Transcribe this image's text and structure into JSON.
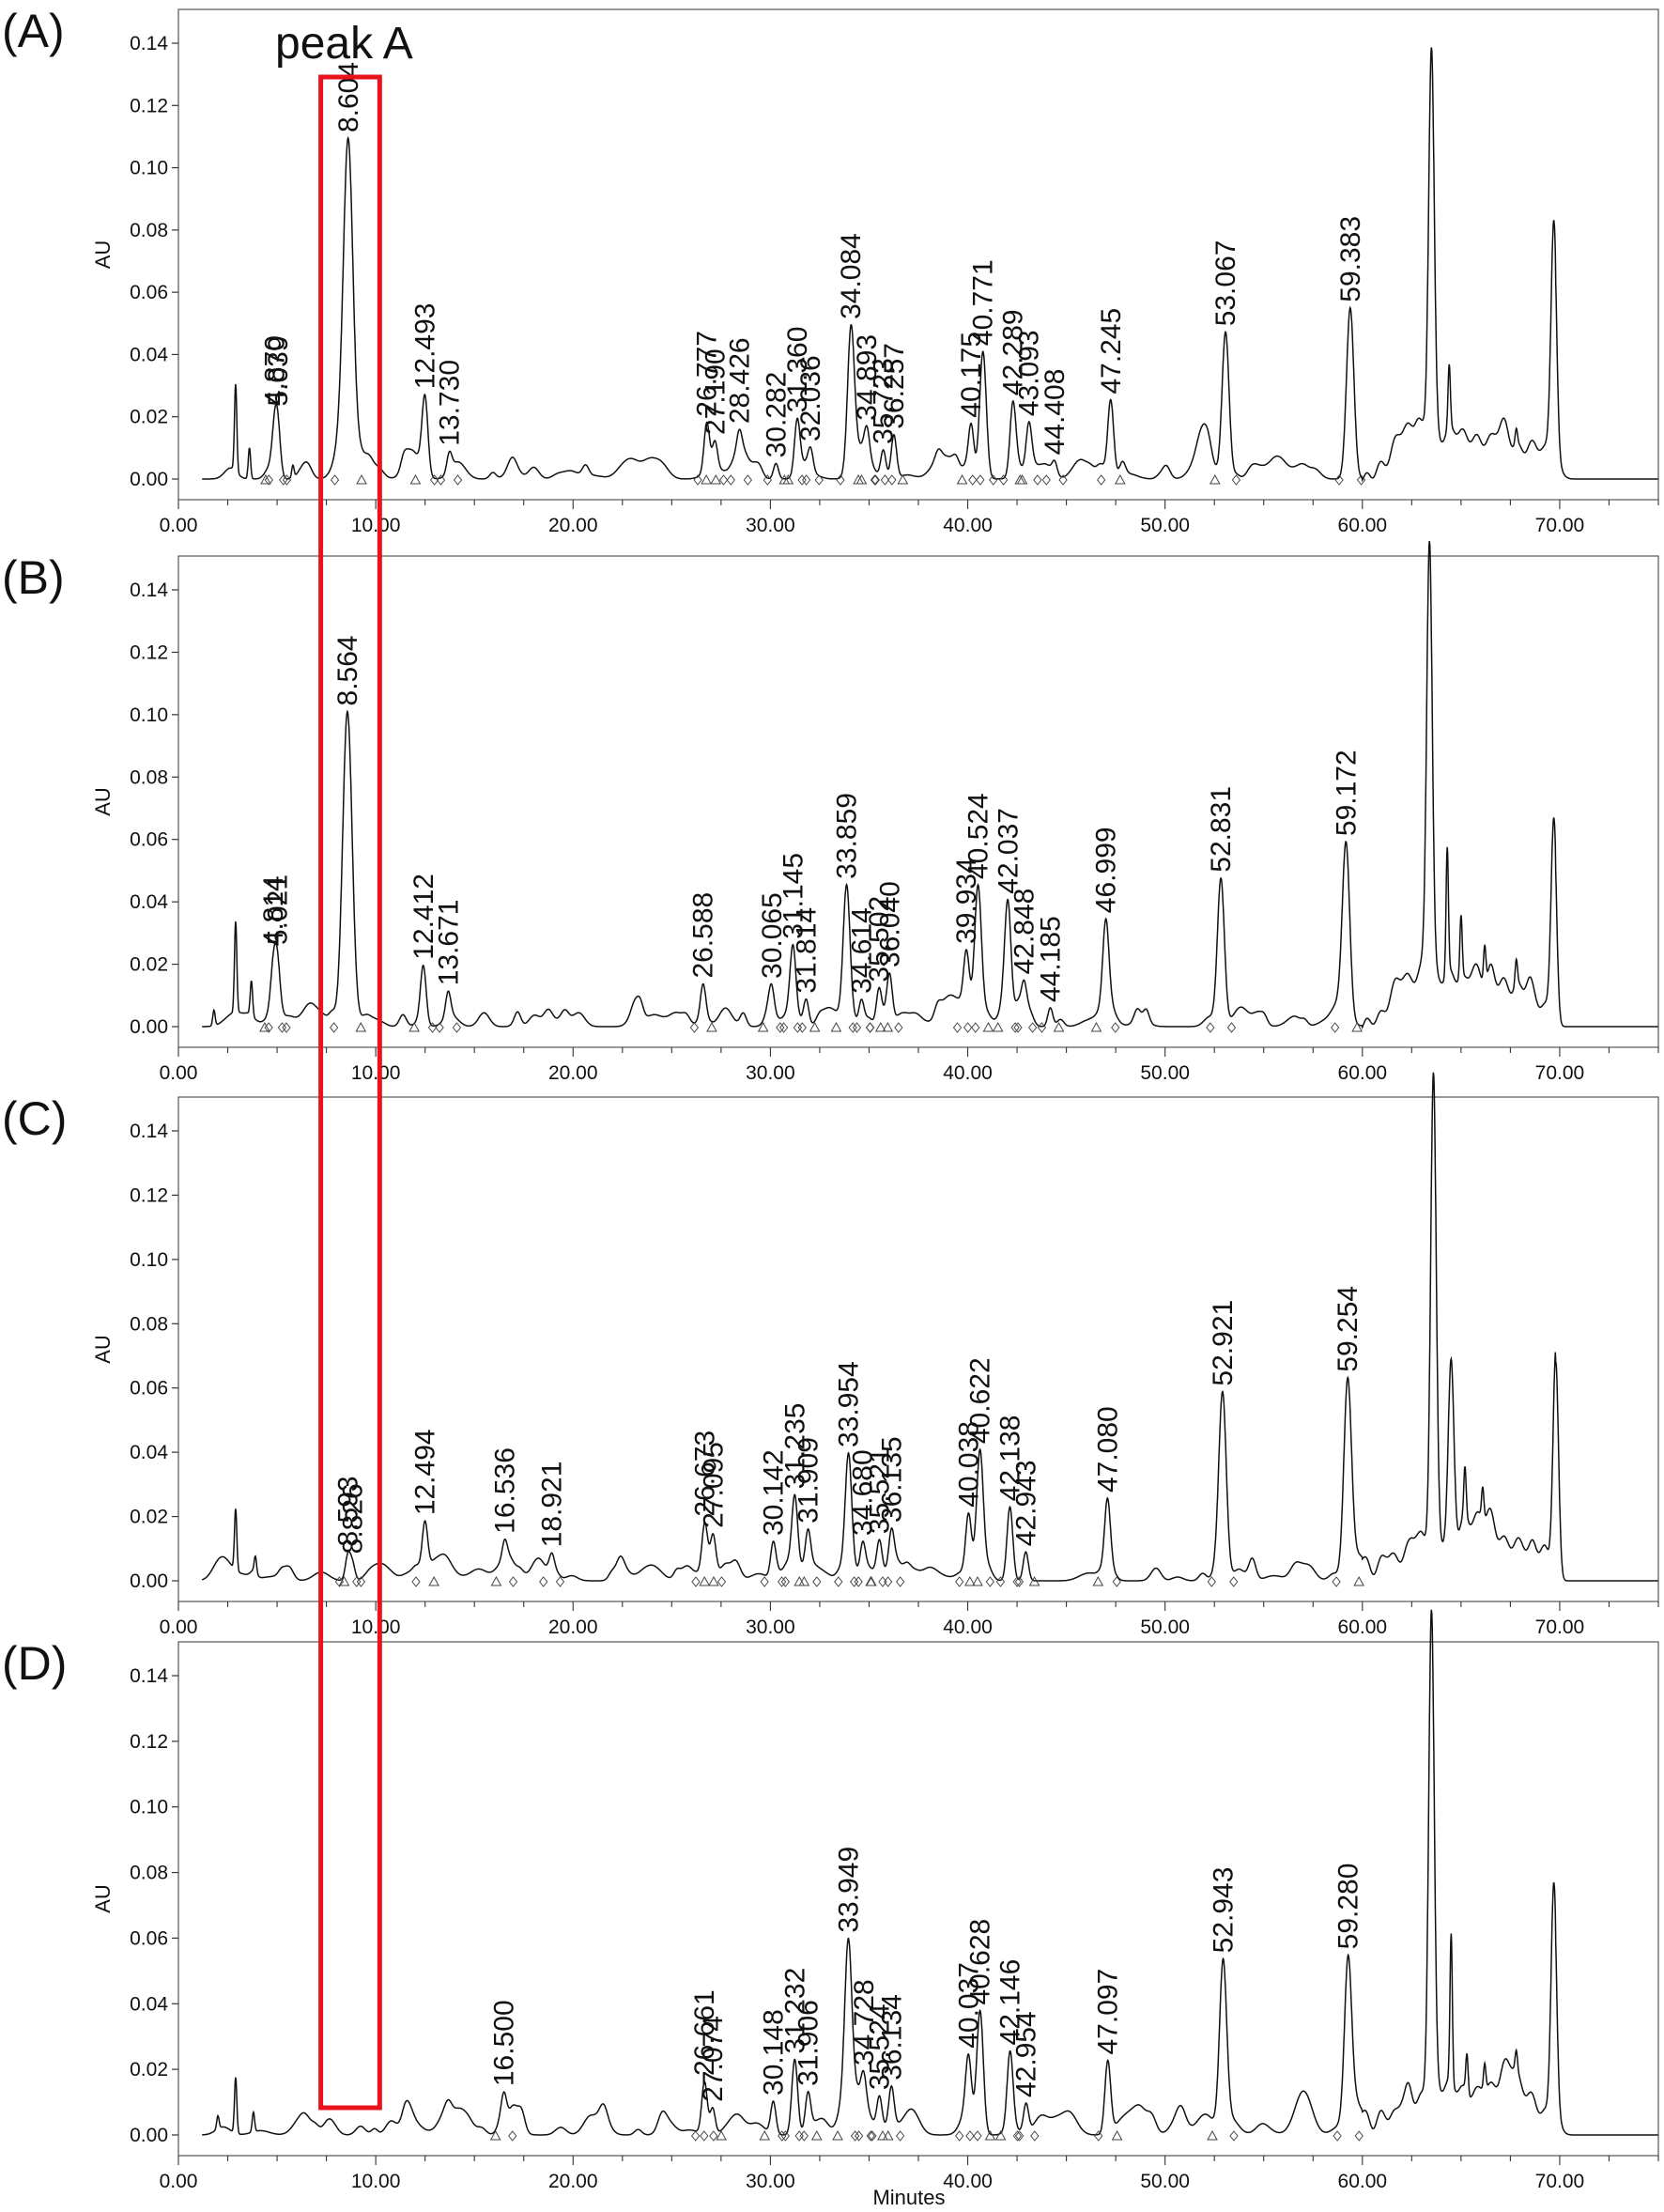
{
  "figure": {
    "x_axis_label": "Minutes",
    "y_axis_label": "AU",
    "highlight_label": "peak A",
    "highlight_range": [
      7.5,
      10.2
    ],
    "highlight_color": "#e8141c",
    "trace_color": "#111111"
  },
  "chart_data": [
    {
      "type": "line",
      "panel": "(A)",
      "xlim": [
        0,
        75
      ],
      "ylim": [
        -0.003,
        0.15
      ],
      "xticks": [
        "0.00",
        "10.00",
        "20.00",
        "30.00",
        "40.00",
        "50.00",
        "60.00",
        "70.00"
      ],
      "yticks": [
        "0.00",
        "0.02",
        "0.04",
        "0.06",
        "0.08",
        "0.10",
        "0.12",
        "0.14"
      ],
      "peaks": [
        {
          "label": "4.870",
          "x": 4.87,
          "y": 0.012
        },
        {
          "label": "5.039",
          "x": 5.039,
          "y": 0.015
        },
        {
          "label": "8.604",
          "x": 8.604,
          "y": 0.1
        },
        {
          "label": "12.493",
          "x": 12.493,
          "y": 0.025
        },
        {
          "label": "13.730",
          "x": 13.73,
          "y": 0.006
        },
        {
          "label": "26.777",
          "x": 26.777,
          "y": 0.016
        },
        {
          "label": "27.190",
          "x": 27.19,
          "y": 0.009
        },
        {
          "label": "28.426",
          "x": 28.426,
          "y": 0.006
        },
        {
          "label": "30.282",
          "x": 30.282,
          "y": 0.005
        },
        {
          "label": "31.360",
          "x": 31.36,
          "y": 0.018
        },
        {
          "label": "32.036",
          "x": 32.036,
          "y": 0.007
        },
        {
          "label": "34.084",
          "x": 34.084,
          "y": 0.046
        },
        {
          "label": "34.893",
          "x": 34.893,
          "y": 0.008
        },
        {
          "label": "35.723",
          "x": 35.723,
          "y": 0.009
        },
        {
          "label": "36.257",
          "x": 36.257,
          "y": 0.014
        },
        {
          "label": "40.175",
          "x": 40.175,
          "y": 0.017
        },
        {
          "label": "40.771",
          "x": 40.771,
          "y": 0.041
        },
        {
          "label": "42.289",
          "x": 42.289,
          "y": 0.023
        },
        {
          "label": "43.093",
          "x": 43.093,
          "y": 0.011
        },
        {
          "label": "44.408",
          "x": 44.408,
          "y": 0.004
        },
        {
          "label": "47.245",
          "x": 47.245,
          "y": 0.025
        },
        {
          "label": "53.067",
          "x": 53.067,
          "y": 0.047
        },
        {
          "label": "59.383",
          "x": 59.383,
          "y": 0.055
        }
      ],
      "unlabeled_peaks": [
        {
          "x": 2.9,
          "y": 0.028
        },
        {
          "x": 3.6,
          "y": 0.01
        },
        {
          "x": 5.8,
          "y": 0.004
        },
        {
          "x": 63.5,
          "y": 0.125
        },
        {
          "x": 64.4,
          "y": 0.02
        },
        {
          "x": 67.8,
          "y": 0.005
        },
        {
          "x": 69.7,
          "y": 0.073
        }
      ]
    },
    {
      "type": "line",
      "panel": "(B)",
      "xlim": [
        0,
        75
      ],
      "ylim": [
        -0.003,
        0.15
      ],
      "xticks": [
        "0.00",
        "10.00",
        "20.00",
        "30.00",
        "40.00",
        "50.00",
        "60.00",
        "70.00"
      ],
      "yticks": [
        "0.00",
        "0.02",
        "0.04",
        "0.06",
        "0.08",
        "0.10",
        "0.12",
        "0.14"
      ],
      "peaks": [
        {
          "label": "4.814",
          "x": 4.814,
          "y": 0.01
        },
        {
          "label": "5.021",
          "x": 5.021,
          "y": 0.013
        },
        {
          "label": "8.564",
          "x": 8.564,
          "y": 0.101
        },
        {
          "label": "12.412",
          "x": 12.412,
          "y": 0.018
        },
        {
          "label": "13.671",
          "x": 13.671,
          "y": 0.008
        },
        {
          "label": "26.588",
          "x": 26.588,
          "y": 0.01
        },
        {
          "label": "30.065",
          "x": 30.065,
          "y": 0.007
        },
        {
          "label": "31.145",
          "x": 31.145,
          "y": 0.02
        },
        {
          "label": "31.814",
          "x": 31.814,
          "y": 0.008
        },
        {
          "label": "33.859",
          "x": 33.859,
          "y": 0.042
        },
        {
          "label": "34.614",
          "x": 34.614,
          "y": 0.008
        },
        {
          "label": "35.502",
          "x": 35.502,
          "y": 0.011
        },
        {
          "label": "36.040",
          "x": 36.04,
          "y": 0.015
        },
        {
          "label": "39.934",
          "x": 39.934,
          "y": 0.017
        },
        {
          "label": "40.524",
          "x": 40.524,
          "y": 0.04
        },
        {
          "label": "42.037",
          "x": 42.037,
          "y": 0.035
        },
        {
          "label": "42.848",
          "x": 42.848,
          "y": 0.01
        },
        {
          "label": "44.185",
          "x": 44.185,
          "y": 0.006
        },
        {
          "label": "46.999",
          "x": 46.999,
          "y": 0.026
        },
        {
          "label": "52.831",
          "x": 52.831,
          "y": 0.047
        },
        {
          "label": "59.172",
          "x": 59.172,
          "y": 0.055
        }
      ],
      "unlabeled_peaks": [
        {
          "x": 2.9,
          "y": 0.029
        },
        {
          "x": 3.7,
          "y": 0.011
        },
        {
          "x": 1.8,
          "y": 0.005
        },
        {
          "x": 63.4,
          "y": 0.138
        },
        {
          "x": 64.3,
          "y": 0.04
        },
        {
          "x": 65.0,
          "y": 0.02
        },
        {
          "x": 66.2,
          "y": 0.012
        },
        {
          "x": 67.8,
          "y": 0.008
        },
        {
          "x": 69.7,
          "y": 0.064
        }
      ]
    },
    {
      "type": "line",
      "panel": "(C)",
      "xlim": [
        0,
        75
      ],
      "ylim": [
        -0.003,
        0.15
      ],
      "xticks": [
        "0.00",
        "10.00",
        "20.00",
        "30.00",
        "40.00",
        "50.00",
        "60.00",
        "70.00"
      ],
      "yticks": [
        "0.00",
        "0.02",
        "0.04",
        "0.06",
        "0.08",
        "0.10",
        "0.12",
        "0.14"
      ],
      "peaks": [
        {
          "label": "8.826",
          "x": 8.826,
          "y": 0.005
        },
        {
          "label": "8.593",
          "x": 8.593,
          "y": 0.008
        },
        {
          "label": "12.494",
          "x": 12.494,
          "y": 0.016
        },
        {
          "label": "16.536",
          "x": 16.536,
          "y": 0.006
        },
        {
          "label": "18.921",
          "x": 18.921,
          "y": 0.004
        },
        {
          "label": "26.673",
          "x": 26.673,
          "y": 0.014
        },
        {
          "label": "27.095",
          "x": 27.095,
          "y": 0.008
        },
        {
          "label": "30.142",
          "x": 30.142,
          "y": 0.01
        },
        {
          "label": "31.235",
          "x": 31.235,
          "y": 0.023
        },
        {
          "label": "31.909",
          "x": 31.909,
          "y": 0.011
        },
        {
          "label": "33.954",
          "x": 33.954,
          "y": 0.036
        },
        {
          "label": "34.680",
          "x": 34.68,
          "y": 0.008
        },
        {
          "label": "35.521",
          "x": 35.521,
          "y": 0.01
        },
        {
          "label": "36.135",
          "x": 36.135,
          "y": 0.012
        },
        {
          "label": "40.038",
          "x": 40.038,
          "y": 0.017
        },
        {
          "label": "40.622",
          "x": 40.622,
          "y": 0.037
        },
        {
          "label": "42.138",
          "x": 42.138,
          "y": 0.023
        },
        {
          "label": "42.943",
          "x": 42.943,
          "y": 0.009
        },
        {
          "label": "47.080",
          "x": 47.08,
          "y": 0.023
        },
        {
          "label": "52.921",
          "x": 52.921,
          "y": 0.054
        },
        {
          "label": "59.254",
          "x": 59.254,
          "y": 0.06
        }
      ],
      "unlabeled_peaks": [
        {
          "x": 2.9,
          "y": 0.019
        },
        {
          "x": 3.9,
          "y": 0.005
        },
        {
          "x": 63.6,
          "y": 0.145
        },
        {
          "x": 64.5,
          "y": 0.055
        },
        {
          "x": 65.2,
          "y": 0.015
        },
        {
          "x": 66.1,
          "y": 0.01
        },
        {
          "x": 69.8,
          "y": 0.068
        }
      ]
    },
    {
      "type": "line",
      "panel": "(D)",
      "xlabel": "Minutes",
      "xlim": [
        0,
        75
      ],
      "ylim": [
        -0.003,
        0.15
      ],
      "xticks": [
        "0.00",
        "10.00",
        "20.00",
        "30.00",
        "40.00",
        "50.00",
        "60.00",
        "70.00"
      ],
      "yticks": [
        "0.00",
        "0.02",
        "0.04",
        "0.06",
        "0.08",
        "0.10",
        "0.12",
        "0.14"
      ],
      "peaks": [
        {
          "label": "16.500",
          "x": 16.5,
          "y": 0.006
        },
        {
          "label": "26.661",
          "x": 26.661,
          "y": 0.016
        },
        {
          "label": "27.074",
          "x": 27.074,
          "y": 0.008
        },
        {
          "label": "30.148",
          "x": 30.148,
          "y": 0.01
        },
        {
          "label": "31.232",
          "x": 31.232,
          "y": 0.023
        },
        {
          "label": "31.906",
          "x": 31.906,
          "y": 0.011
        },
        {
          "label": "33.949",
          "x": 33.949,
          "y": 0.047
        },
        {
          "label": "34.728",
          "x": 34.728,
          "y": 0.008
        },
        {
          "label": "35.524",
          "x": 35.524,
          "y": 0.01
        },
        {
          "label": "36.134",
          "x": 36.134,
          "y": 0.012
        },
        {
          "label": "40.037",
          "x": 40.037,
          "y": 0.017
        },
        {
          "label": "40.628",
          "x": 40.628,
          "y": 0.037
        },
        {
          "label": "42.146",
          "x": 42.146,
          "y": 0.023
        },
        {
          "label": "42.954",
          "x": 42.954,
          "y": 0.009
        },
        {
          "label": "47.097",
          "x": 47.097,
          "y": 0.022
        },
        {
          "label": "52.943",
          "x": 52.943,
          "y": 0.05
        },
        {
          "label": "59.280",
          "x": 59.28,
          "y": 0.052
        }
      ],
      "unlabeled_peaks": [
        {
          "x": 2.0,
          "y": 0.004
        },
        {
          "x": 2.9,
          "y": 0.017
        },
        {
          "x": 3.8,
          "y": 0.006
        },
        {
          "x": 63.5,
          "y": 0.148
        },
        {
          "x": 64.5,
          "y": 0.045
        },
        {
          "x": 65.3,
          "y": 0.012
        },
        {
          "x": 66.2,
          "y": 0.008
        },
        {
          "x": 67.8,
          "y": 0.006
        },
        {
          "x": 69.7,
          "y": 0.071
        }
      ]
    }
  ]
}
